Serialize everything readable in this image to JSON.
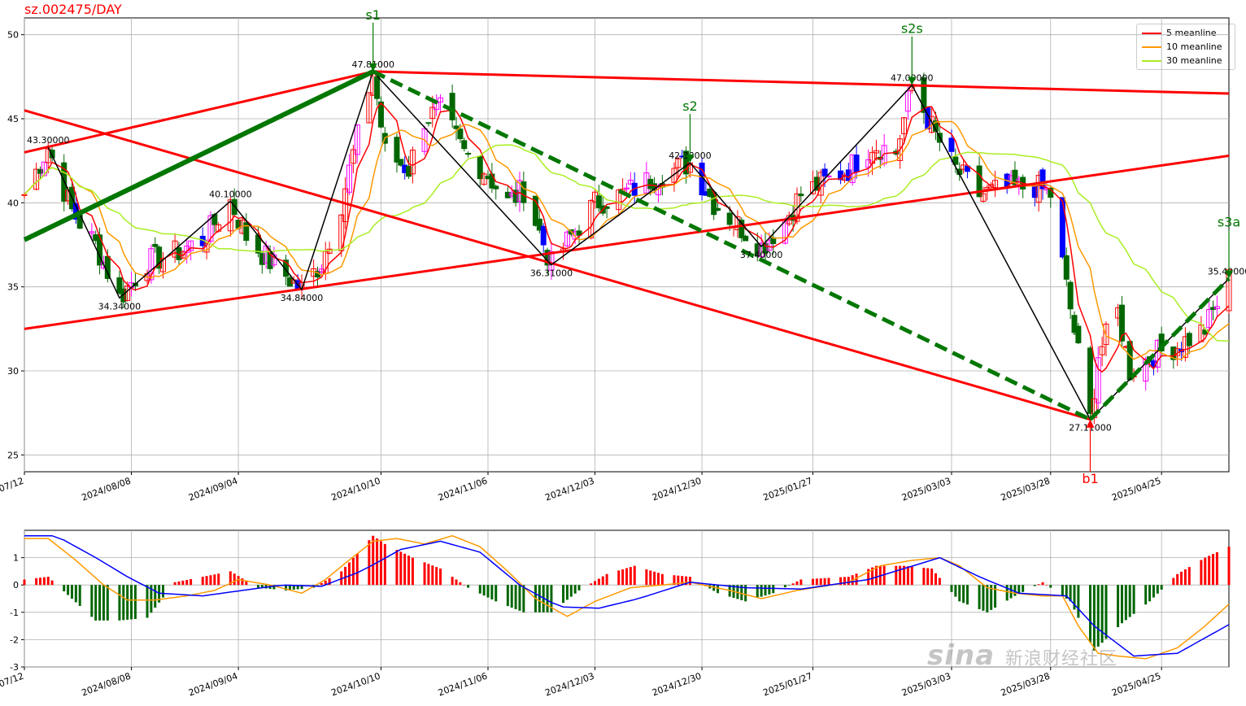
{
  "chart_data": [
    {
      "type": "candlestick",
      "title": "sz.002475/DAY",
      "ylim": [
        24,
        51
      ],
      "yticks": [
        25,
        30,
        35,
        40,
        45,
        50
      ],
      "x_range": [
        "2024-07-12",
        "2025-05-12"
      ],
      "xtick_labels": [
        "2024/07/12",
        "2024/08/08",
        "2024/09/04",
        "2024/10/10",
        "2024/11/06",
        "2024/12/03",
        "2024/12/30",
        "2025/01/27",
        "2025/03/03",
        "2025/03/28",
        "2025/04/25"
      ],
      "xtick_dates": [
        "2024-07-12",
        "2024-08-08",
        "2024-09-04",
        "2024-10-10",
        "2024-11-06",
        "2024-12-03",
        "2024-12-30",
        "2025-01-27",
        "2025-03-03",
        "2025-03-28",
        "2025-04-25"
      ],
      "grid": true,
      "legend_position": "top-right",
      "legend": [
        "5 meanline",
        "10 meanline",
        "30 meanline"
      ],
      "colors": {
        "ma5": "#ff0000",
        "ma10": "#ff9900",
        "ma30": "#aaee22",
        "zigzag": "#000000",
        "trend": "#ff0000",
        "wave": "#007700",
        "signal_sell": "#007700",
        "signal_buy": "#ff0000"
      },
      "price_anchors": [
        {
          "date": "2024-07-12",
          "value": 40.5
        },
        {
          "date": "2024-07-18",
          "value": 43.3
        },
        {
          "date": "2024-07-24",
          "value": 39.5
        },
        {
          "date": "2024-07-30",
          "value": 37.5
        },
        {
          "date": "2024-08-05",
          "value": 34.34
        },
        {
          "date": "2024-08-12",
          "value": 36.5
        },
        {
          "date": "2024-08-19",
          "value": 37.0
        },
        {
          "date": "2024-08-26",
          "value": 37.8
        },
        {
          "date": "2024-09-02",
          "value": 40.1
        },
        {
          "date": "2024-09-06",
          "value": 38.0
        },
        {
          "date": "2024-09-12",
          "value": 36.5
        },
        {
          "date": "2024-09-20",
          "value": 34.84
        },
        {
          "date": "2024-09-25",
          "value": 36.5
        },
        {
          "date": "2024-09-30",
          "value": 40.0
        },
        {
          "date": "2024-10-08",
          "value": 47.81
        },
        {
          "date": "2024-10-11",
          "value": 43.0
        },
        {
          "date": "2024-10-17",
          "value": 42.0
        },
        {
          "date": "2024-10-21",
          "value": 45.0
        },
        {
          "date": "2024-10-25",
          "value": 45.5
        },
        {
          "date": "2024-10-31",
          "value": 43.0
        },
        {
          "date": "2024-11-05",
          "value": 42.0
        },
        {
          "date": "2024-11-11",
          "value": 40.0
        },
        {
          "date": "2024-11-15",
          "value": 40.8
        },
        {
          "date": "2024-11-22",
          "value": 36.31
        },
        {
          "date": "2024-11-27",
          "value": 38.0
        },
        {
          "date": "2024-12-03",
          "value": 40.0
        },
        {
          "date": "2024-12-10",
          "value": 40.5
        },
        {
          "date": "2024-12-18",
          "value": 41.5
        },
        {
          "date": "2024-12-27",
          "value": 42.38
        },
        {
          "date": "2025-01-02",
          "value": 40.0
        },
        {
          "date": "2025-01-09",
          "value": 38.5
        },
        {
          "date": "2025-01-14",
          "value": 37.4
        },
        {
          "date": "2025-01-20",
          "value": 39.0
        },
        {
          "date": "2025-01-24",
          "value": 40.5
        },
        {
          "date": "2025-02-05",
          "value": 42.0
        },
        {
          "date": "2025-02-11",
          "value": 43.5
        },
        {
          "date": "2025-02-17",
          "value": 43.0
        },
        {
          "date": "2025-02-21",
          "value": 47.0
        },
        {
          "date": "2025-02-27",
          "value": 44.0
        },
        {
          "date": "2025-03-04",
          "value": 42.0
        },
        {
          "date": "2025-03-10",
          "value": 40.5
        },
        {
          "date": "2025-03-17",
          "value": 40.8
        },
        {
          "date": "2025-03-24",
          "value": 41.0
        },
        {
          "date": "2025-03-28",
          "value": 40.5
        },
        {
          "date": "2025-04-01",
          "value": 35.0
        },
        {
          "date": "2025-04-07",
          "value": 27.11
        },
        {
          "date": "2025-04-09",
          "value": 31.0
        },
        {
          "date": "2025-04-14",
          "value": 33.5
        },
        {
          "date": "2025-04-17",
          "value": 30.0
        },
        {
          "date": "2025-04-23",
          "value": 31.0
        },
        {
          "date": "2025-04-29",
          "value": 31.5
        },
        {
          "date": "2025-05-06",
          "value": 32.5
        },
        {
          "date": "2025-05-12",
          "value": 35.49
        }
      ],
      "zigzag_points": [
        {
          "date": "2024-07-18",
          "value": 43.3,
          "label": "43.30000"
        },
        {
          "date": "2024-08-05",
          "value": 34.34,
          "label": "34.34000"
        },
        {
          "date": "2024-09-02",
          "value": 40.1,
          "label": "40.10000"
        },
        {
          "date": "2024-09-20",
          "value": 34.84,
          "label": "34.84000"
        },
        {
          "date": "2024-10-08",
          "value": 47.81,
          "label": "47.81000"
        },
        {
          "date": "2024-11-22",
          "value": 36.31,
          "label": "36.31000"
        },
        {
          "date": "2024-12-27",
          "value": 42.38,
          "label": "42.38000"
        },
        {
          "date": "2025-01-14",
          "value": 37.4,
          "label": "37.40000"
        },
        {
          "date": "2025-02-21",
          "value": 47.0,
          "label": "47.00000"
        },
        {
          "date": "2025-04-07",
          "value": 27.11,
          "label": "27.11000"
        },
        {
          "date": "2025-05-12",
          "value": 35.49,
          "label": "35.49000"
        }
      ],
      "trend_lines": [
        {
          "start": {
            "date": "2024-07-12",
            "value": 43.0
          },
          "end": {
            "date": "2024-10-08",
            "value": 47.81
          }
        },
        {
          "start": {
            "date": "2024-10-08",
            "value": 47.81
          },
          "end": {
            "date": "2025-05-12",
            "value": 46.5
          }
        },
        {
          "start": {
            "date": "2024-07-12",
            "value": 45.5
          },
          "end": {
            "date": "2025-04-07",
            "value": 27.11
          }
        },
        {
          "start": {
            "date": "2024-07-12",
            "value": 32.5
          },
          "end": {
            "date": "2025-05-12",
            "value": 42.8
          }
        }
      ],
      "wave_lines": [
        {
          "style": "solid",
          "start": {
            "date": "2024-07-12",
            "value": 37.8
          },
          "end": {
            "date": "2024-10-08",
            "value": 47.81
          }
        },
        {
          "style": "dashed",
          "start": {
            "date": "2024-10-08",
            "value": 47.81
          },
          "end": {
            "date": "2025-04-07",
            "value": 27.11
          }
        },
        {
          "style": "dashed",
          "start": {
            "date": "2025-04-07",
            "value": 27.11
          },
          "end": {
            "date": "2025-05-12",
            "value": 35.49
          }
        }
      ],
      "signals": [
        {
          "label": "s1",
          "type": "sell",
          "date": "2024-10-08",
          "value": 47.81
        },
        {
          "label": "s2",
          "type": "sell",
          "date": "2024-12-27",
          "value": 42.38
        },
        {
          "label": "s2s",
          "type": "sell",
          "date": "2025-02-21",
          "value": 47.0
        },
        {
          "label": "b1",
          "type": "buy",
          "date": "2025-04-07",
          "value": 27.11
        },
        {
          "label": "s3a",
          "type": "sell",
          "date": "2025-05-12",
          "value": 35.49
        }
      ],
      "stray_marks": [
        {
          "text": "-",
          "date": "2025-04-03",
          "value": 32.0
        }
      ]
    },
    {
      "type": "macd",
      "ylim": [
        -3,
        2
      ],
      "yticks": [
        -3,
        -2,
        -1,
        0,
        1
      ],
      "grid": true,
      "colors": {
        "dif": "#ff9900",
        "dea": "#0000ff",
        "hist_pos": "#ff0000",
        "hist_neg": "#006600"
      },
      "dif": [
        {
          "date": "2024-07-12",
          "value": 1.7
        },
        {
          "date": "2024-07-18",
          "value": 1.7
        },
        {
          "date": "2024-07-25",
          "value": 0.9
        },
        {
          "date": "2024-08-01",
          "value": 0.0
        },
        {
          "date": "2024-08-07",
          "value": -0.55
        },
        {
          "date": "2024-08-14",
          "value": -0.55
        },
        {
          "date": "2024-08-22",
          "value": -0.4
        },
        {
          "date": "2024-08-29",
          "value": -0.2
        },
        {
          "date": "2024-09-04",
          "value": 0.2
        },
        {
          "date": "2024-09-12",
          "value": 0.0
        },
        {
          "date": "2024-09-20",
          "value": -0.3
        },
        {
          "date": "2024-09-26",
          "value": 0.2
        },
        {
          "date": "2024-10-01",
          "value": 0.8
        },
        {
          "date": "2024-10-08",
          "value": 1.6
        },
        {
          "date": "2024-10-14",
          "value": 1.7
        },
        {
          "date": "2024-10-21",
          "value": 1.5
        },
        {
          "date": "2024-10-28",
          "value": 1.8
        },
        {
          "date": "2024-11-04",
          "value": 1.4
        },
        {
          "date": "2024-11-11",
          "value": 0.5
        },
        {
          "date": "2024-11-18",
          "value": -0.5
        },
        {
          "date": "2024-11-26",
          "value": -1.15
        },
        {
          "date": "2024-12-03",
          "value": -0.6
        },
        {
          "date": "2024-12-12",
          "value": -0.1
        },
        {
          "date": "2024-12-20",
          "value": 0.0
        },
        {
          "date": "2024-12-27",
          "value": 0.1
        },
        {
          "date": "2025-01-06",
          "value": -0.2
        },
        {
          "date": "2025-01-14",
          "value": -0.5
        },
        {
          "date": "2025-01-23",
          "value": -0.2
        },
        {
          "date": "2025-02-05",
          "value": 0.1
        },
        {
          "date": "2025-02-13",
          "value": 0.7
        },
        {
          "date": "2025-02-21",
          "value": 0.9
        },
        {
          "date": "2025-02-28",
          "value": 1.0
        },
        {
          "date": "2025-03-05",
          "value": 0.7
        },
        {
          "date": "2025-03-12",
          "value": -0.1
        },
        {
          "date": "2025-03-19",
          "value": -0.3
        },
        {
          "date": "2025-03-26",
          "value": -0.4
        },
        {
          "date": "2025-03-31",
          "value": -0.4
        },
        {
          "date": "2025-04-04",
          "value": -1.5
        },
        {
          "date": "2025-04-09",
          "value": -2.5
        },
        {
          "date": "2025-04-14",
          "value": -2.6
        },
        {
          "date": "2025-04-21",
          "value": -2.7
        },
        {
          "date": "2025-04-29",
          "value": -2.3
        },
        {
          "date": "2025-05-06",
          "value": -1.5
        },
        {
          "date": "2025-05-12",
          "value": -0.7
        }
      ],
      "dea": [
        {
          "date": "2024-07-12",
          "value": 1.8
        },
        {
          "date": "2024-07-20",
          "value": 1.8
        },
        {
          "date": "2024-07-30",
          "value": 1.0
        },
        {
          "date": "2024-08-07",
          "value": 0.3
        },
        {
          "date": "2024-08-15",
          "value": -0.3
        },
        {
          "date": "2024-08-26",
          "value": -0.4
        },
        {
          "date": "2024-09-05",
          "value": -0.2
        },
        {
          "date": "2024-09-15",
          "value": 0.0
        },
        {
          "date": "2024-09-25",
          "value": -0.05
        },
        {
          "date": "2024-10-05",
          "value": 0.5
        },
        {
          "date": "2024-10-15",
          "value": 1.3
        },
        {
          "date": "2024-10-25",
          "value": 1.6
        },
        {
          "date": "2024-11-04",
          "value": 1.2
        },
        {
          "date": "2024-11-14",
          "value": 0.0
        },
        {
          "date": "2024-11-24",
          "value": -0.8
        },
        {
          "date": "2024-12-04",
          "value": -0.85
        },
        {
          "date": "2024-12-14",
          "value": -0.5
        },
        {
          "date": "2024-12-27",
          "value": 0.1
        },
        {
          "date": "2025-01-10",
          "value": -0.1
        },
        {
          "date": "2025-01-24",
          "value": -0.15
        },
        {
          "date": "2025-02-10",
          "value": 0.2
        },
        {
          "date": "2025-02-28",
          "value": 1.0
        },
        {
          "date": "2025-03-10",
          "value": 0.3
        },
        {
          "date": "2025-03-20",
          "value": -0.3
        },
        {
          "date": "2025-04-01",
          "value": -0.4
        },
        {
          "date": "2025-04-08",
          "value": -1.5
        },
        {
          "date": "2025-04-18",
          "value": -2.6
        },
        {
          "date": "2025-04-29",
          "value": -2.5
        },
        {
          "date": "2025-05-12",
          "value": -1.45
        }
      ],
      "histogram": [
        {
          "date": "2024-07-12",
          "value": 0.2
        },
        {
          "date": "2024-07-18",
          "value": 0.3
        },
        {
          "date": "2024-07-24",
          "value": -0.5
        },
        {
          "date": "2024-07-30",
          "value": -1.3
        },
        {
          "date": "2024-08-05",
          "value": -1.3
        },
        {
          "date": "2024-08-12",
          "value": -1.2
        },
        {
          "date": "2024-08-19",
          "value": 0.1
        },
        {
          "date": "2024-08-26",
          "value": 0.3
        },
        {
          "date": "2024-09-02",
          "value": 0.5
        },
        {
          "date": "2024-09-09",
          "value": -0.1
        },
        {
          "date": "2024-09-16",
          "value": -0.2
        },
        {
          "date": "2024-09-23",
          "value": -0.1
        },
        {
          "date": "2024-09-30",
          "value": 0.5
        },
        {
          "date": "2024-10-08",
          "value": 1.8
        },
        {
          "date": "2024-10-11",
          "value": 1.5
        },
        {
          "date": "2024-10-18",
          "value": 1.0
        },
        {
          "date": "2024-10-25",
          "value": 0.6
        },
        {
          "date": "2024-11-01",
          "value": -0.1
        },
        {
          "date": "2024-11-08",
          "value": -0.6
        },
        {
          "date": "2024-11-15",
          "value": -1.0
        },
        {
          "date": "2024-11-22",
          "value": -1.0
        },
        {
          "date": "2024-11-29",
          "value": -0.2
        },
        {
          "date": "2024-12-06",
          "value": 0.4
        },
        {
          "date": "2024-12-13",
          "value": 0.7
        },
        {
          "date": "2024-12-20",
          "value": 0.4
        },
        {
          "date": "2024-12-27",
          "value": 0.3
        },
        {
          "date": "2025-01-03",
          "value": -0.3
        },
        {
          "date": "2025-01-10",
          "value": -0.6
        },
        {
          "date": "2025-01-17",
          "value": -0.3
        },
        {
          "date": "2025-01-24",
          "value": 0.2
        },
        {
          "date": "2025-02-05",
          "value": 0.3
        },
        {
          "date": "2025-02-12",
          "value": 0.7
        },
        {
          "date": "2025-02-19",
          "value": 0.7
        },
        {
          "date": "2025-02-26",
          "value": 0.6
        },
        {
          "date": "2025-03-05",
          "value": -0.6
        },
        {
          "date": "2025-03-12",
          "value": -1.0
        },
        {
          "date": "2025-03-19",
          "value": -0.4
        },
        {
          "date": "2025-03-26",
          "value": 0.1
        },
        {
          "date": "2025-04-02",
          "value": -0.6
        },
        {
          "date": "2025-04-08",
          "value": -2.4
        },
        {
          "date": "2025-04-15",
          "value": -1.4
        },
        {
          "date": "2025-04-22",
          "value": -0.6
        },
        {
          "date": "2025-04-29",
          "value": 0.4
        },
        {
          "date": "2025-05-06",
          "value": 1.0
        },
        {
          "date": "2025-05-12",
          "value": 1.4
        }
      ]
    }
  ],
  "watermark": {
    "brand": "sina",
    "text": "新浪财经社区"
  }
}
